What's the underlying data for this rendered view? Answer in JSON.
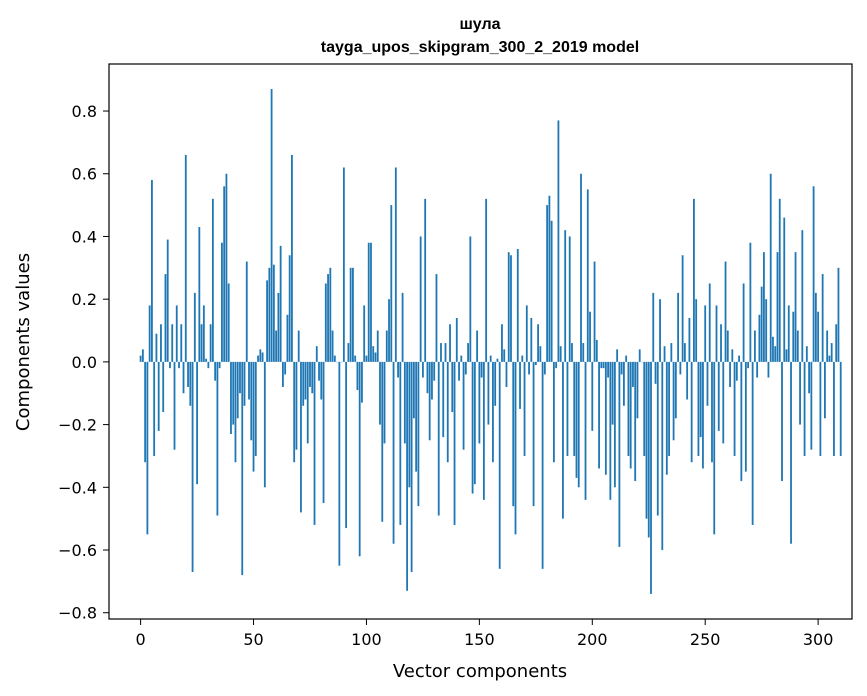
{
  "colors": {
    "bar": "#1f77b4",
    "axes": "#000000",
    "background": "#ffffff"
  },
  "chart_data": {
    "type": "bar",
    "title": "шула",
    "subtitle": "tayga_upos_skipgram_300_2_2019 model",
    "xlabel": "Vector components",
    "ylabel": "Components values",
    "xlim": [
      -14,
      315
    ],
    "ylim": [
      -0.82,
      0.95
    ],
    "xticks": [
      0,
      50,
      100,
      150,
      200,
      250,
      300
    ],
    "xtick_labels": [
      "0",
      "50",
      "100",
      "150",
      "200",
      "250",
      "300"
    ],
    "yticks": [
      0.8,
      0.6,
      0.4,
      0.2,
      0.0,
      -0.2,
      -0.4,
      -0.6,
      -0.8
    ],
    "ytick_labels": [
      "0.8",
      "0.6",
      "0.4",
      "0.2",
      "0.0",
      "−0.2",
      "−0.4",
      "−0.6",
      "−0.8"
    ],
    "grid": false,
    "values": [
      0.02,
      0.04,
      -0.32,
      -0.55,
      0.18,
      0.58,
      -0.3,
      0.09,
      -0.22,
      0.12,
      -0.16,
      0.28,
      0.39,
      -0.02,
      0.12,
      -0.28,
      0.18,
      -0.02,
      0.12,
      -0.1,
      0.66,
      -0.08,
      -0.14,
      -0.67,
      0.22,
      -0.39,
      0.43,
      0.12,
      0.18,
      0.01,
      -0.02,
      0.12,
      0.52,
      -0.06,
      -0.49,
      -0.02,
      0.38,
      0.56,
      0.6,
      0.25,
      -0.23,
      -0.2,
      -0.32,
      -0.18,
      -0.1,
      -0.68,
      -0.14,
      0.32,
      -0.12,
      -0.25,
      -0.35,
      -0.3,
      0.02,
      0.04,
      0.03,
      -0.4,
      0.26,
      0.3,
      0.87,
      0.31,
      0.1,
      0.22,
      0.37,
      -0.08,
      -0.04,
      0.15,
      0.34,
      0.66,
      -0.32,
      -0.28,
      0.1,
      -0.48,
      -0.14,
      -0.12,
      -0.26,
      -0.08,
      -0.1,
      -0.52,
      0.05,
      -0.06,
      -0.12,
      -0.45,
      0.25,
      0.28,
      0.3,
      0.1,
      0.02,
      0.0,
      -0.65,
      0.0,
      0.62,
      -0.53,
      0.06,
      0.3,
      0.3,
      0.02,
      -0.09,
      -0.62,
      -0.13,
      0.18,
      0.02,
      0.38,
      0.38,
      0.05,
      0.03,
      0.1,
      -0.2,
      -0.51,
      -0.26,
      0.1,
      0.2,
      0.5,
      -0.58,
      0.62,
      -0.05,
      -0.52,
      0.22,
      -0.26,
      -0.73,
      -0.4,
      -0.67,
      -0.18,
      -0.35,
      -0.46,
      0.4,
      -0.05,
      0.52,
      -0.1,
      -0.25,
      -0.12,
      -0.06,
      0.28,
      -0.49,
      0.06,
      -0.24,
      0.06,
      -0.32,
      0.12,
      -0.16,
      -0.52,
      0.14,
      -0.06,
      0.02,
      -0.28,
      -0.04,
      0.06,
      0.4,
      -0.42,
      -0.39,
      0.1,
      -0.26,
      -0.05,
      -0.44,
      0.52,
      -0.2,
      0.02,
      -0.32,
      -0.14,
      0.01,
      -0.66,
      0.12,
      0.04,
      -0.08,
      0.35,
      0.34,
      -0.46,
      -0.55,
      0.36,
      -0.15,
      0.02,
      -0.3,
      0.18,
      -0.04,
      0.14,
      -0.46,
      -0.01,
      0.12,
      0.05,
      -0.66,
      -0.04,
      0.5,
      0.53,
      0.45,
      -0.32,
      -0.02,
      0.77,
      0.05,
      -0.5,
      0.42,
      -0.3,
      0.4,
      0.06,
      -0.3,
      -0.37,
      -0.4,
      0.6,
      0.06,
      -0.44,
      0.55,
      0.16,
      -0.22,
      0.32,
      0.07,
      -0.34,
      -0.02,
      -0.02,
      -0.36,
      -0.05,
      -0.44,
      -0.2,
      -0.4,
      0.04,
      -0.59,
      -0.04,
      -0.14,
      0.02,
      -0.3,
      -0.34,
      -0.08,
      -0.38,
      -0.18,
      0.04,
      0.0,
      -0.3,
      -0.5,
      -0.56,
      -0.74,
      0.22,
      -0.07,
      -0.49,
      0.2,
      -0.6,
      0.05,
      -0.36,
      -0.3,
      0.06,
      -0.25,
      -0.18,
      0.22,
      -0.04,
      0.34,
      0.06,
      -0.12,
      0.14,
      -0.32,
      0.52,
      0.2,
      -0.3,
      -0.24,
      -0.34,
      0.18,
      -0.14,
      0.25,
      -0.32,
      -0.55,
      0.18,
      -0.22,
      0.12,
      -0.26,
      0.32,
      0.1,
      -0.08,
      0.04,
      -0.3,
      -0.06,
      0.02,
      -0.38,
      0.25,
      -0.35,
      -0.02,
      0.38,
      -0.52,
      0.1,
      -0.05,
      0.15,
      0.24,
      0.35,
      0.2,
      -0.05,
      0.6,
      0.08,
      0.05,
      0.35,
      0.52,
      -0.38,
      0.46,
      0.04,
      0.18,
      -0.58,
      0.16,
      0.35,
      0.1,
      -0.2,
      0.42,
      -0.3,
      0.05,
      -0.1,
      -0.28,
      0.56,
      0.22,
      0.16,
      -0.3,
      0.28,
      -0.18,
      0.1,
      0.02,
      0.06,
      -0.3,
      0.12,
      0.3,
      -0.3
    ]
  }
}
